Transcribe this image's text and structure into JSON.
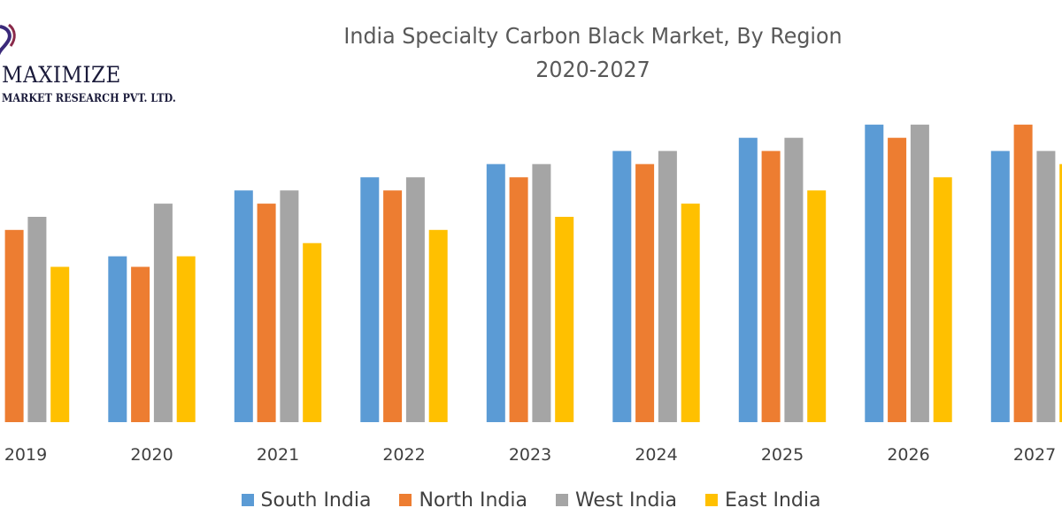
{
  "brand": {
    "name": "MAXIMIZE",
    "subtitle": "MARKET RESEARCH PVT. LTD."
  },
  "chart_data": {
    "type": "bar",
    "title": "India Specialty Carbon Black Market, By Region",
    "subtitle": "2020-2027",
    "xlabel": "",
    "ylabel": "",
    "categories": [
      "2019",
      "2020",
      "2021",
      "2022",
      "2023",
      "2024",
      "2025",
      "2026",
      "2027"
    ],
    "series": [
      {
        "name": "South India",
        "color": "#5B9BD5",
        "values": [
          null,
          6.3,
          8.8,
          9.3,
          9.8,
          10.3,
          10.8,
          11.3,
          10.3
        ]
      },
      {
        "name": "North India",
        "color": "#ED7D31",
        "values": [
          7.3,
          5.9,
          8.3,
          8.8,
          9.3,
          9.8,
          10.3,
          10.8,
          11.3
        ]
      },
      {
        "name": "West India",
        "color": "#A5A5A5",
        "values": [
          7.8,
          8.3,
          8.8,
          9.3,
          9.8,
          10.3,
          10.8,
          11.3,
          10.3
        ]
      },
      {
        "name": "East India",
        "color": "#FFC000",
        "values": [
          5.9,
          6.3,
          6.8,
          7.3,
          7.8,
          8.3,
          8.8,
          9.3,
          9.8
        ]
      }
    ],
    "ylim": [
      0,
      12
    ],
    "grid": false,
    "legend_position": "bottom"
  }
}
